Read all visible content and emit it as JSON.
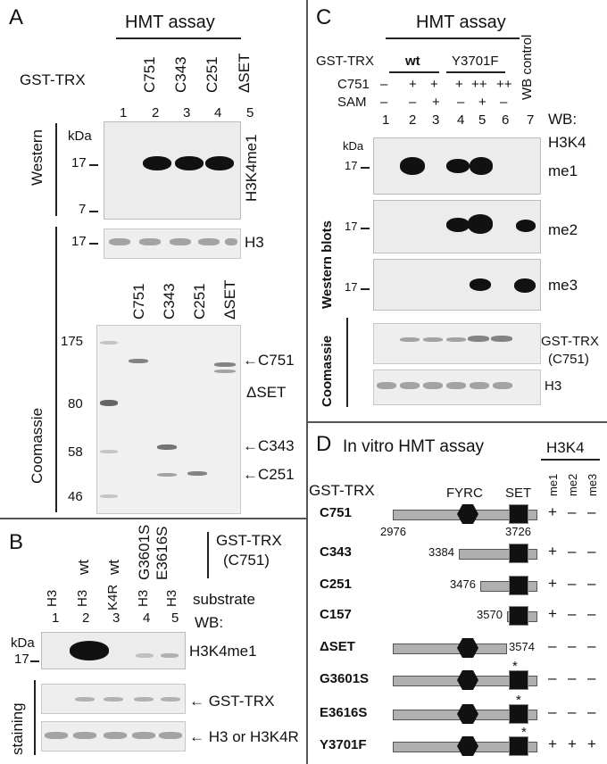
{
  "panelA": {
    "letter": "A",
    "title": "HMT assay",
    "gst_label": "GST-TRX",
    "lanes": [
      {
        "num": "1",
        "name": ""
      },
      {
        "num": "2",
        "name": "C751"
      },
      {
        "num": "3",
        "name": "C343"
      },
      {
        "num": "4",
        "name": "C251"
      },
      {
        "num": "5",
        "name": "ΔSET"
      }
    ],
    "western_label": "Western",
    "coomassie_label": "Coomassie",
    "kda": "kDa",
    "western_markers": [
      "17",
      "7"
    ],
    "antibody": "H3K4me1",
    "h3_marker": "17",
    "h3_label": "H3",
    "gel_lanes": [
      "C751",
      "C343",
      "C251",
      "ΔSET"
    ],
    "gel_markers": [
      "175",
      "80",
      "58",
      "46"
    ],
    "gel_arrows": [
      "C751",
      "ΔSET",
      "C343",
      "C251"
    ]
  },
  "panelB": {
    "letter": "B",
    "top": [
      "wt",
      "wt",
      "G3601S",
      "E3616S"
    ],
    "gst_label": "GST-TRX",
    "gst_sub": "(C751)",
    "substrates": [
      "H3",
      "H3",
      "K4R",
      "H3",
      "H3"
    ],
    "nums": [
      "1",
      "2",
      "3",
      "4",
      "5"
    ],
    "substrate_label": "substrate",
    "wb_label": "WB:",
    "kda": "kDa",
    "marker": "17",
    "antibody": "H3K4me1",
    "staining_label": "staining",
    "arrow1": "GST-TRX",
    "arrow2": "H3 or H3K4R"
  },
  "panelC": {
    "letter": "C",
    "title": "HMT assay",
    "gst_label": "GST-TRX",
    "wt": "wt",
    "mut": "Y3701F",
    "wb_control": "WB control",
    "c751_label": "C751",
    "c751_row": [
      "–",
      "+",
      "+",
      "+",
      "++",
      "++"
    ],
    "sam_label": "SAM",
    "sam_row": [
      "–",
      "–",
      "+",
      "–",
      "+",
      "–"
    ],
    "nums": [
      "1",
      "2",
      "3",
      "4",
      "5",
      "6",
      "7"
    ],
    "wb_label": "WB:",
    "wb_h3k4": "H3K4",
    "kda": "kDa",
    "marker": "17",
    "blot_labels": [
      "me1",
      "me2",
      "me3"
    ],
    "western_blots_label": "Western blots",
    "coomassie_label": "Coomassie",
    "gst_band": "GST-TRX",
    "gst_band_sub": "(C751)",
    "h3_band": "H3"
  },
  "panelD": {
    "letter": "D",
    "title": "In vitro HMT assay",
    "h3k4": "H3K4",
    "cols": [
      "me1",
      "me2",
      "me3"
    ],
    "gst_label": "GST-TRX",
    "fyrc": "FYRC",
    "set": "SET",
    "rows": [
      {
        "name": "C751",
        "start": "2976",
        "end": "3726",
        "res": [
          "+",
          "–",
          "–"
        ]
      },
      {
        "name": "C343",
        "start": "3384",
        "end": "",
        "res": [
          "+",
          "–",
          "–"
        ]
      },
      {
        "name": "C251",
        "start": "3476",
        "end": "",
        "res": [
          "+",
          "–",
          "–"
        ]
      },
      {
        "name": "C157",
        "start": "3570",
        "end": "",
        "res": [
          "+",
          "–",
          "–"
        ]
      },
      {
        "name": "ΔSET",
        "start": "",
        "end": "3574",
        "res": [
          "–",
          "–",
          "–"
        ]
      },
      {
        "name": "G3601S",
        "start": "",
        "end": "",
        "res": [
          "–",
          "–",
          "–"
        ]
      },
      {
        "name": "E3616S",
        "start": "",
        "end": "",
        "res": [
          "–",
          "–",
          "–"
        ]
      },
      {
        "name": "Y3701F",
        "start": "",
        "end": "",
        "res": [
          "+",
          "+",
          "+"
        ]
      }
    ],
    "star": "*"
  }
}
